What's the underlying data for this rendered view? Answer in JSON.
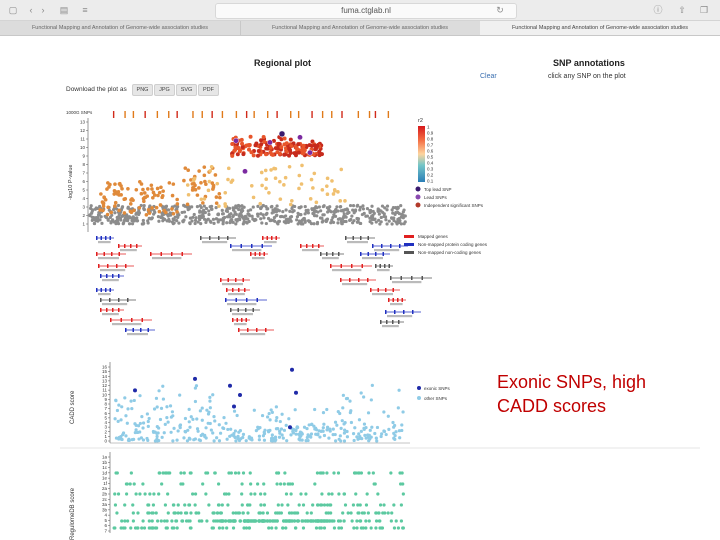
{
  "browser": {
    "url": "fuma.ctglab.nl",
    "tabs": [
      "Functional Mapping and Annotation of Genome-wide association studies",
      "Functional Mapping and Annotation of Genome-wide association studies",
      "Functional Mapping and Annotation of Genome-wide association studies"
    ]
  },
  "regional_plot": {
    "title": "Regional plot",
    "download_label": "Download the plot as",
    "formats": [
      "PNG",
      "JPG",
      "SVG",
      "PDF"
    ],
    "gwas_label": "1000G SNPs",
    "ylabel": "-log10 P-value",
    "yticks": [
      "13",
      "12",
      "11",
      "10",
      "9",
      "8",
      "7",
      "6",
      "5",
      "4",
      "3",
      "2",
      "1"
    ],
    "r2_title": "r2",
    "r2_ticks": [
      "1",
      "0.9",
      "0.8",
      "0.7",
      "0.6",
      "0.5",
      "0.4",
      "0.3",
      "0.2",
      "0.1"
    ],
    "legend": [
      "Top lead SNP",
      "Lead SNPs",
      "Independent significant SNPs"
    ],
    "gene_legend": [
      "Mapped genes",
      "Non-mapped protein coding genes",
      "Non-mapped non-coding genes"
    ]
  },
  "snp_annotations": {
    "title": "SNP annotations",
    "clear": "Clear",
    "hint": "click any SNP on the plot"
  },
  "cadd_plot": {
    "ylabel": "CADD score",
    "yticks": [
      "16",
      "15",
      "14",
      "13",
      "12",
      "11",
      "10",
      "9",
      "8",
      "7",
      "6",
      "5",
      "4",
      "3",
      "2",
      "1",
      "0"
    ],
    "legend": [
      "exonic SNPs",
      "other SNPs"
    ]
  },
  "regdb_plot": {
    "ylabel": "RegulomeDB score",
    "yticks": [
      "1a",
      "1b",
      "1c",
      "1d",
      "1e",
      "1f",
      "2a",
      "2b",
      "2c",
      "3a",
      "3b",
      "4",
      "5",
      "6",
      "7"
    ]
  },
  "overlay_text": {
    "line1": "Exonic SNPs, high",
    "line2": "CADD scores"
  },
  "colors": {
    "accent": "#c00000",
    "cadd_exonic": "#1f2aa8",
    "cadd_other": "#8fcbe6",
    "regdb": "#5cc9a0",
    "lead": "#7b2aa0"
  }
}
